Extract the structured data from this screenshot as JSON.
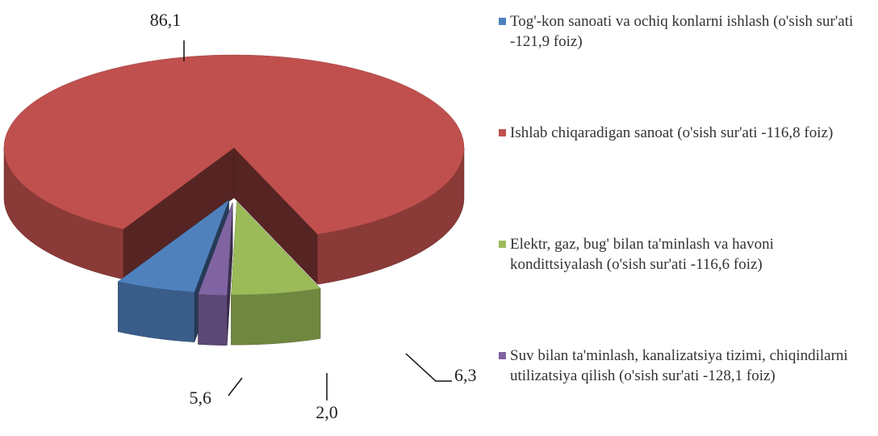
{
  "chart_data": {
    "type": "pie",
    "categories": [
      "Tog'-kon sanoati va ochiq konlarni ishlash (o'sish sur'ati -121,9 foiz)",
      "Ishlab chiqaradigan sanoat (o'sish sur'ati -116,8 foiz)",
      "Elektr, gaz, bug' bilan ta'minlash va havoni kondittsiyalash (o'sish sur'ati -116,6 foiz)",
      "Suv bilan ta'minlash, kanalizatsiya tizimi, chiqindilarni utilizatsiya qilish (o'sish sur'ati -128,1 foiz)"
    ],
    "values": [
      5.6,
      86.1,
      6.3,
      2.0
    ],
    "value_labels": [
      "5,6",
      "86,1",
      "6,3",
      "2,0"
    ],
    "colors": [
      "#4f81bd",
      "#c0504d",
      "#9bbb59",
      "#8064a2"
    ],
    "legend": "right"
  }
}
